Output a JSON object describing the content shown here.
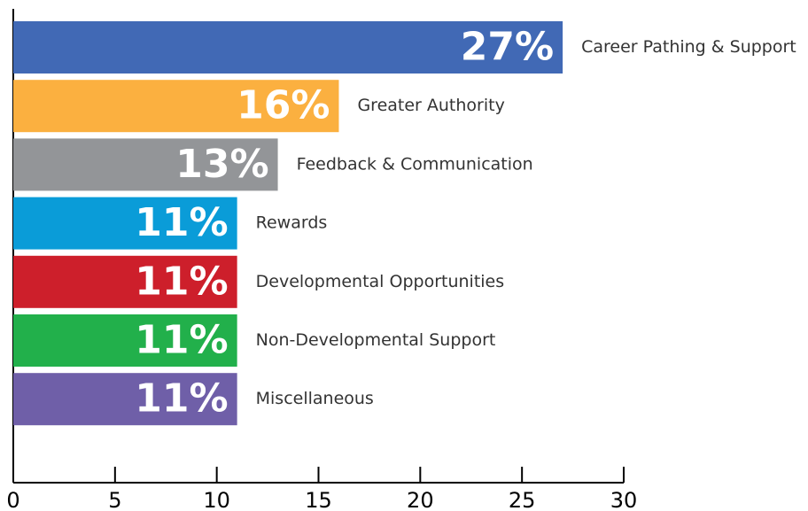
{
  "chart_data": {
    "type": "bar",
    "orientation": "horizontal",
    "categories": [
      "Career Pathing & Support",
      "Greater Authority",
      "Feedback & Communication",
      "Rewards",
      "Developmental Opportunities",
      "Non-Developmental Support",
      "Miscellaneous"
    ],
    "values": [
      27,
      16,
      13,
      11,
      11,
      11,
      11
    ],
    "value_labels": [
      "27%",
      "16%",
      "13%",
      "11%",
      "11%",
      "11%",
      "11%"
    ],
    "colors": [
      "#4169b5",
      "#fbb040",
      "#939598",
      "#0a9cd8",
      "#cd1f2b",
      "#22b04b",
      "#6f5fa8"
    ],
    "xlim": [
      0,
      30
    ],
    "xticks": [
      0,
      5,
      10,
      15,
      20,
      25,
      30
    ]
  }
}
